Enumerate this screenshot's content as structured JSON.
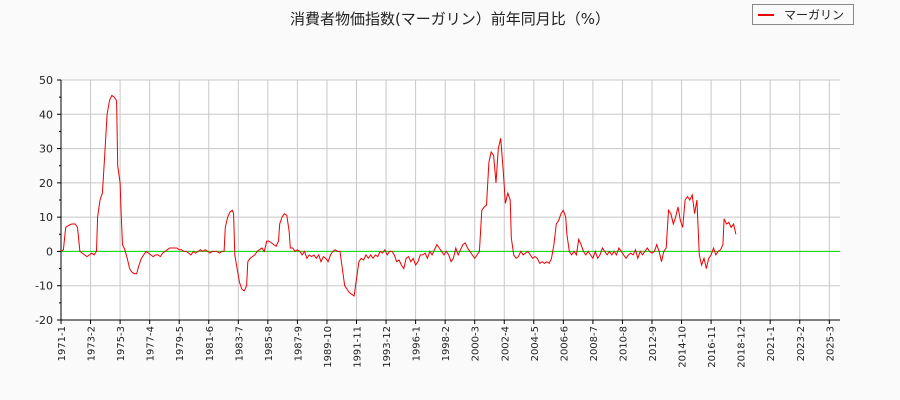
{
  "title": "消費者物価指数(マーガリン）前年同月比（%）",
  "legend": {
    "label": "マーガリン",
    "color": "#ee0000"
  },
  "chart_data": {
    "type": "line",
    "title": "消費者物価指数(マーガリン）前年同月比（%）",
    "xlabel": "",
    "ylabel": "",
    "ylim": [
      -20,
      50
    ],
    "yticks": [
      50,
      40,
      30,
      20,
      10,
      0,
      -10,
      -20
    ],
    "grid": true,
    "legend_position": "top-right",
    "zero_line_color": "#00dd00",
    "x_tick_labels": [
      "1971-1",
      "1973-2",
      "1975-3",
      "1977-4",
      "1979-5",
      "1981-6",
      "1983-7",
      "1985-8",
      "1987-9",
      "1989-10",
      "1991-11",
      "1993-12",
      "1996-1",
      "1998-2",
      "2000-3",
      "2002-4",
      "2004-5",
      "2006-6",
      "2008-7",
      "2010-8",
      "2012-9",
      "2014-10",
      "2016-11",
      "2018-12",
      "2021-1",
      "2023-2",
      "2025-3"
    ],
    "series": [
      {
        "name": "マーガリン",
        "color": "#ee0000",
        "points_month_index_value": [
          [
            0,
            0
          ],
          [
            2,
            0.5
          ],
          [
            4,
            7
          ],
          [
            6,
            7.5
          ],
          [
            9,
            8
          ],
          [
            12,
            8
          ],
          [
            14,
            7
          ],
          [
            16,
            0
          ],
          [
            18,
            -0.5
          ],
          [
            20,
            -1
          ],
          [
            22,
            -1.5
          ],
          [
            24,
            -1
          ],
          [
            26,
            -0.5
          ],
          [
            28,
            -1
          ],
          [
            30,
            0
          ],
          [
            31,
            10
          ],
          [
            33,
            15
          ],
          [
            35,
            17
          ],
          [
            37,
            28
          ],
          [
            39,
            40
          ],
          [
            41,
            44
          ],
          [
            43,
            45.5
          ],
          [
            45,
            45
          ],
          [
            47,
            44
          ],
          [
            48,
            25
          ],
          [
            50,
            20
          ],
          [
            51,
            10
          ],
          [
            52,
            2
          ],
          [
            54,
            0.5
          ],
          [
            56,
            -2
          ],
          [
            58,
            -5
          ],
          [
            60,
            -6
          ],
          [
            62,
            -6.5
          ],
          [
            64,
            -6.5
          ],
          [
            66,
            -4
          ],
          [
            68,
            -2
          ],
          [
            70,
            -1
          ],
          [
            72,
            0
          ],
          [
            74,
            -0.5
          ],
          [
            76,
            -1
          ],
          [
            78,
            -1.5
          ],
          [
            80,
            -1
          ],
          [
            82,
            -1
          ],
          [
            84,
            -1.5
          ],
          [
            86,
            -0.5
          ],
          [
            88,
            0
          ],
          [
            90,
            0.5
          ],
          [
            92,
            1
          ],
          [
            94,
            1
          ],
          [
            96,
            1
          ],
          [
            98,
            1
          ],
          [
            100,
            0.5
          ],
          [
            102,
            0.5
          ],
          [
            104,
            0
          ],
          [
            106,
            0
          ],
          [
            108,
            -0.5
          ],
          [
            110,
            -1
          ],
          [
            112,
            0
          ],
          [
            114,
            -0.5
          ],
          [
            116,
            0
          ],
          [
            118,
            0.5
          ],
          [
            120,
            0
          ],
          [
            122,
            0.5
          ],
          [
            124,
            0
          ],
          [
            126,
            -0.5
          ],
          [
            128,
            0
          ],
          [
            130,
            0
          ],
          [
            132,
            0
          ],
          [
            134,
            -0.5
          ],
          [
            136,
            0
          ],
          [
            138,
            0
          ],
          [
            139,
            7
          ],
          [
            141,
            10
          ],
          [
            143,
            11.5
          ],
          [
            145,
            12
          ],
          [
            146,
            11
          ],
          [
            147,
            -1
          ],
          [
            149,
            -5
          ],
          [
            151,
            -9
          ],
          [
            153,
            -11
          ],
          [
            155,
            -11.5
          ],
          [
            157,
            -10
          ],
          [
            158,
            -3
          ],
          [
            160,
            -2
          ],
          [
            162,
            -1.5
          ],
          [
            164,
            -1
          ],
          [
            166,
            0
          ],
          [
            168,
            0.5
          ],
          [
            170,
            1
          ],
          [
            172,
            0
          ],
          [
            174,
            3
          ],
          [
            176,
            3
          ],
          [
            178,
            2.5
          ],
          [
            180,
            2
          ],
          [
            182,
            1.5
          ],
          [
            184,
            3
          ],
          [
            185,
            8
          ],
          [
            187,
            10
          ],
          [
            189,
            11
          ],
          [
            191,
            10.5
          ],
          [
            193,
            6
          ],
          [
            194,
            1
          ],
          [
            196,
            1
          ],
          [
            198,
            0
          ],
          [
            200,
            0.5
          ],
          [
            202,
            0
          ],
          [
            204,
            -1
          ],
          [
            206,
            0
          ],
          [
            208,
            -2
          ],
          [
            210,
            -1
          ],
          [
            212,
            -1.5
          ],
          [
            214,
            -1
          ],
          [
            216,
            -2
          ],
          [
            218,
            -1
          ],
          [
            220,
            -3
          ],
          [
            222,
            -1.5
          ],
          [
            224,
            -2
          ],
          [
            226,
            -3
          ],
          [
            228,
            -1
          ],
          [
            230,
            0
          ],
          [
            232,
            0.5
          ],
          [
            234,
            0
          ],
          [
            236,
            0
          ],
          [
            238,
            -5
          ],
          [
            240,
            -10
          ],
          [
            242,
            -11
          ],
          [
            244,
            -12
          ],
          [
            246,
            -12.5
          ],
          [
            248,
            -13
          ],
          [
            250,
            -8
          ],
          [
            252,
            -3
          ],
          [
            254,
            -2
          ],
          [
            256,
            -2.5
          ],
          [
            258,
            -1
          ],
          [
            260,
            -2
          ],
          [
            262,
            -1
          ],
          [
            264,
            -2
          ],
          [
            266,
            -1
          ],
          [
            268,
            -1.5
          ],
          [
            270,
            0
          ],
          [
            272,
            -0.5
          ],
          [
            274,
            0.5
          ],
          [
            276,
            -1
          ],
          [
            278,
            0
          ],
          [
            280,
            0
          ],
          [
            282,
            -1
          ],
          [
            284,
            -3
          ],
          [
            286,
            -2.5
          ],
          [
            288,
            -4
          ],
          [
            290,
            -5
          ],
          [
            292,
            -2
          ],
          [
            294,
            -1.5
          ],
          [
            296,
            -3
          ],
          [
            298,
            -2
          ],
          [
            300,
            -4
          ],
          [
            302,
            -3
          ],
          [
            304,
            -1
          ],
          [
            306,
            -1
          ],
          [
            308,
            -0.5
          ],
          [
            310,
            -2
          ],
          [
            312,
            0
          ],
          [
            314,
            -1
          ],
          [
            316,
            0.5
          ],
          [
            318,
            2
          ],
          [
            320,
            1
          ],
          [
            322,
            0
          ],
          [
            324,
            -1
          ],
          [
            326,
            0
          ],
          [
            328,
            -1
          ],
          [
            330,
            -3
          ],
          [
            332,
            -2
          ],
          [
            334,
            1
          ],
          [
            336,
            -1
          ],
          [
            338,
            0.5
          ],
          [
            340,
            2
          ],
          [
            342,
            2.5
          ],
          [
            344,
            1
          ],
          [
            346,
            0
          ],
          [
            348,
            -1
          ],
          [
            350,
            -2
          ],
          [
            352,
            -1
          ],
          [
            354,
            0
          ],
          [
            356,
            12
          ],
          [
            358,
            13
          ],
          [
            360,
            13.5
          ],
          [
            362,
            26
          ],
          [
            364,
            29
          ],
          [
            366,
            28
          ],
          [
            368,
            20
          ],
          [
            370,
            30
          ],
          [
            372,
            33
          ],
          [
            374,
            24
          ],
          [
            376,
            14
          ],
          [
            378,
            17
          ],
          [
            380,
            15
          ],
          [
            381,
            4
          ],
          [
            383,
            -1
          ],
          [
            385,
            -2
          ],
          [
            387,
            -1.5
          ],
          [
            389,
            0
          ],
          [
            391,
            -1
          ],
          [
            393,
            -0.5
          ],
          [
            395,
            0
          ],
          [
            397,
            -1
          ],
          [
            399,
            -2
          ],
          [
            401,
            -1.5
          ],
          [
            403,
            -2
          ],
          [
            405,
            -3.5
          ],
          [
            407,
            -3
          ],
          [
            409,
            -3.5
          ],
          [
            411,
            -3
          ],
          [
            413,
            -3.5
          ],
          [
            415,
            -2
          ],
          [
            417,
            2
          ],
          [
            419,
            8
          ],
          [
            421,
            9
          ],
          [
            423,
            11
          ],
          [
            425,
            12
          ],
          [
            427,
            10
          ],
          [
            428,
            5
          ],
          [
            430,
            0
          ],
          [
            432,
            -1
          ],
          [
            434,
            0
          ],
          [
            436,
            -1
          ],
          [
            438,
            3.5
          ],
          [
            440,
            2
          ],
          [
            442,
            0
          ],
          [
            444,
            -1
          ],
          [
            446,
            0
          ],
          [
            448,
            -1
          ],
          [
            450,
            -2
          ],
          [
            452,
            0
          ],
          [
            454,
            -2
          ],
          [
            456,
            -1
          ],
          [
            458,
            1
          ],
          [
            460,
            0
          ],
          [
            462,
            -1
          ],
          [
            464,
            0
          ],
          [
            466,
            -1
          ],
          [
            468,
            0
          ],
          [
            470,
            -1
          ],
          [
            472,
            1
          ],
          [
            474,
            0
          ],
          [
            476,
            -1
          ],
          [
            478,
            -2
          ],
          [
            480,
            -1
          ],
          [
            482,
            -0.5
          ],
          [
            484,
            -1
          ],
          [
            486,
            0.5
          ],
          [
            488,
            -2
          ],
          [
            490,
            0
          ],
          [
            492,
            -1
          ],
          [
            494,
            0
          ],
          [
            496,
            1
          ],
          [
            498,
            0
          ],
          [
            500,
            -0.5
          ],
          [
            502,
            0
          ],
          [
            504,
            2
          ],
          [
            506,
            0
          ],
          [
            508,
            -3
          ],
          [
            510,
            0
          ],
          [
            512,
            1
          ],
          [
            514,
            12
          ],
          [
            516,
            11
          ],
          [
            518,
            8
          ],
          [
            520,
            10
          ],
          [
            522,
            13
          ],
          [
            524,
            9
          ],
          [
            526,
            7
          ],
          [
            528,
            15
          ],
          [
            530,
            16
          ],
          [
            532,
            15
          ],
          [
            534,
            16.5
          ],
          [
            536,
            11
          ],
          [
            538,
            15
          ],
          [
            540,
            -1
          ],
          [
            542,
            -4
          ],
          [
            544,
            -2
          ],
          [
            546,
            -5
          ],
          [
            548,
            -2
          ],
          [
            550,
            -1
          ],
          [
            552,
            1
          ],
          [
            554,
            -1
          ],
          [
            556,
            0
          ],
          [
            558,
            0.5
          ],
          [
            560,
            2
          ],
          [
            561,
            9.5
          ],
          [
            563,
            8
          ],
          [
            565,
            8.5
          ],
          [
            567,
            7
          ],
          [
            569,
            8
          ],
          [
            571,
            5
          ]
        ]
      }
    ]
  }
}
